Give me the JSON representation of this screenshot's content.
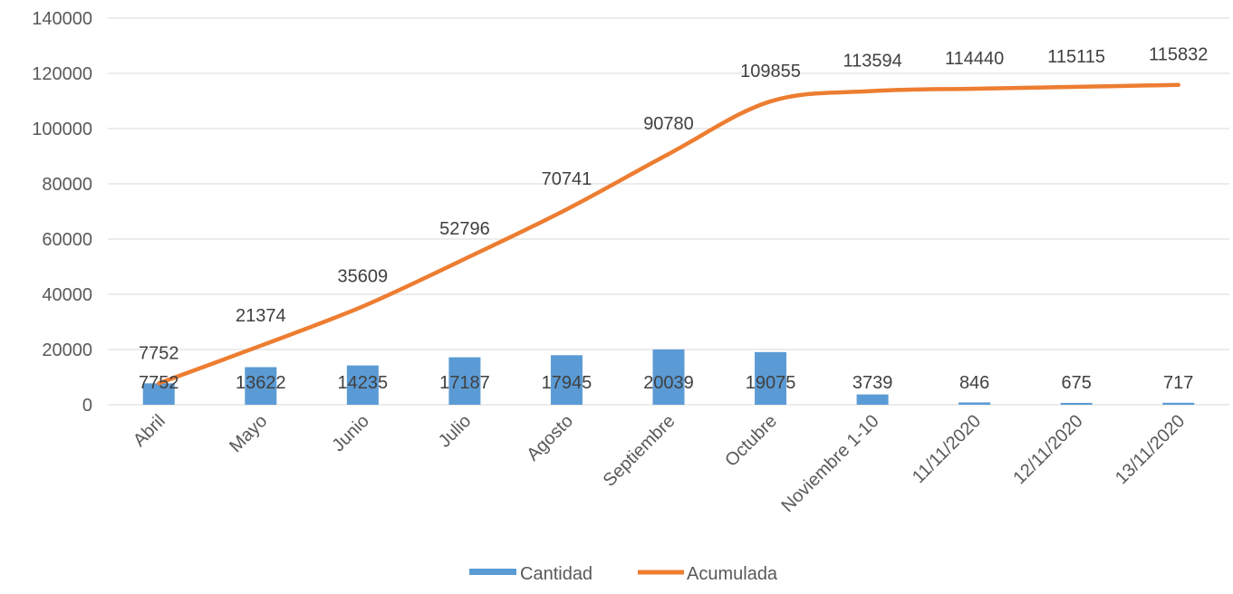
{
  "chart_data": {
    "type": "bar+line",
    "categories": [
      "Abril",
      "Mayo",
      "Junio",
      "Julio",
      "Agosto",
      "Septiembre",
      "Octubre",
      "Noviembre 1-10",
      "11/11/2020",
      "12/11/2020",
      "13/11/2020"
    ],
    "series": [
      {
        "name": "Cantidad",
        "type": "bar",
        "color": "#5B9BD5",
        "values": [
          7752,
          13622,
          14235,
          17187,
          17945,
          20039,
          19075,
          3739,
          846,
          675,
          717
        ],
        "labels": [
          "7752",
          "13622",
          "14235",
          "17187",
          "17945",
          "20039",
          "19075",
          "3739",
          "846",
          "675",
          "717"
        ]
      },
      {
        "name": "Acumulada",
        "type": "line",
        "color": "#ED7D31",
        "values": [
          7752,
          21374,
          35609,
          52796,
          70741,
          90780,
          109855,
          113594,
          114440,
          115115,
          115832
        ],
        "labels": [
          "7752",
          "21374",
          "35609",
          "52796",
          "70741",
          "90780",
          "109855",
          "113594",
          "114440",
          "115115",
          "115832"
        ]
      }
    ],
    "ylim": [
      0,
      140000
    ],
    "yticks": [
      "0",
      "20000",
      "40000",
      "60000",
      "80000",
      "100000",
      "120000",
      "140000"
    ],
    "grid": true,
    "legend": "bottom"
  }
}
